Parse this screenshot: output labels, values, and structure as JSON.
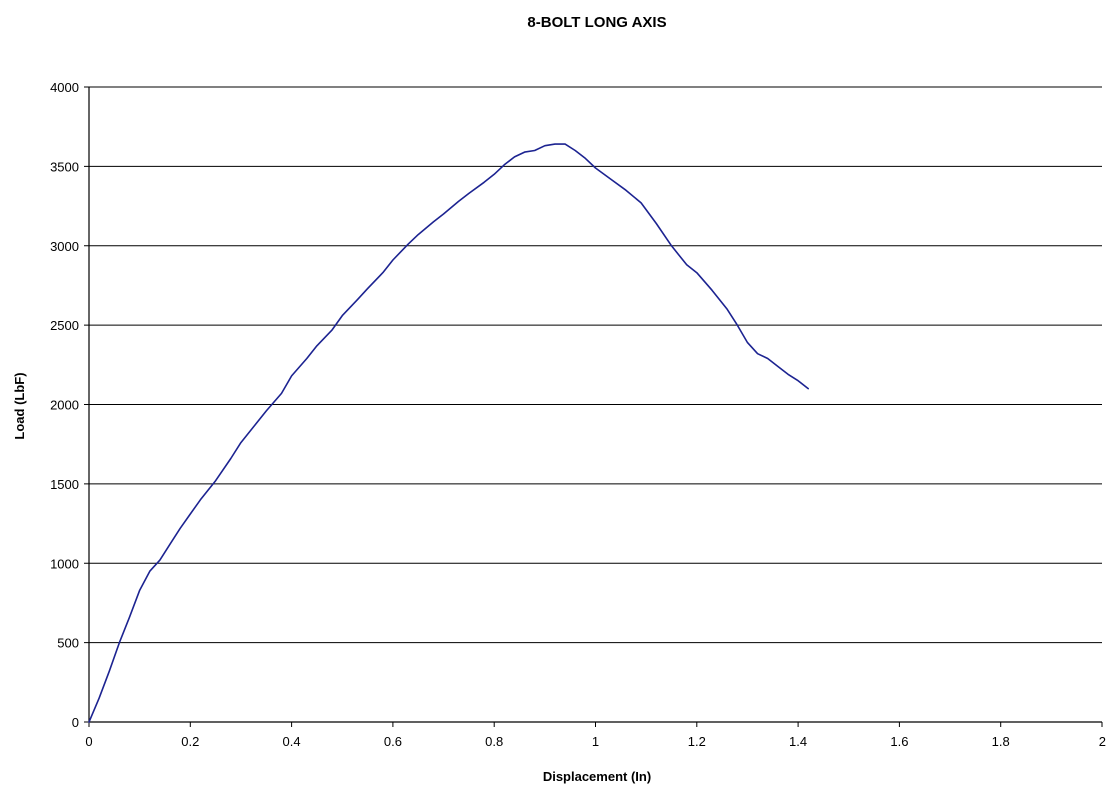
{
  "chart_data": {
    "type": "line",
    "title": "8-BOLT LONG AXIS",
    "xlabel": "Displacement (In)",
    "ylabel": "Load (LbF)",
    "xlim": [
      0,
      2
    ],
    "ylim": [
      0,
      4000
    ],
    "xticks": [
      0,
      0.2,
      0.4,
      0.6,
      0.8,
      1,
      1.2,
      1.4,
      1.6,
      1.8,
      2
    ],
    "xtick_labels": [
      "0",
      "0.2",
      "0.4",
      "0.6",
      "0.8",
      "1",
      "1.2",
      "1.4",
      "1.6",
      "1.8",
      "2"
    ],
    "yticks": [
      0,
      500,
      1000,
      1500,
      2000,
      2500,
      3000,
      3500,
      4000
    ],
    "ytick_labels": [
      "0",
      "500",
      "1000",
      "1500",
      "2000",
      "2500",
      "3000",
      "3500",
      "4000"
    ],
    "grid": "horizontal",
    "legend": "none",
    "series": [
      {
        "color": "#1c2391",
        "x": [
          0,
          0.02,
          0.04,
          0.06,
          0.08,
          0.1,
          0.12,
          0.14,
          0.16,
          0.18,
          0.2,
          0.22,
          0.25,
          0.28,
          0.3,
          0.33,
          0.35,
          0.38,
          0.4,
          0.43,
          0.45,
          0.48,
          0.5,
          0.53,
          0.55,
          0.58,
          0.6,
          0.63,
          0.65,
          0.68,
          0.7,
          0.73,
          0.75,
          0.78,
          0.8,
          0.82,
          0.84,
          0.86,
          0.88,
          0.9,
          0.92,
          0.94,
          0.96,
          0.98,
          1,
          1.03,
          1.06,
          1.09,
          1.12,
          1.15,
          1.18,
          1.2,
          1.23,
          1.26,
          1.28,
          1.3,
          1.32,
          1.34,
          1.36,
          1.38,
          1.4,
          1.42
        ],
        "y": [
          0,
          150,
          320,
          500,
          660,
          830,
          950,
          1020,
          1120,
          1220,
          1310,
          1400,
          1520,
          1660,
          1760,
          1880,
          1960,
          2070,
          2180,
          2290,
          2370,
          2470,
          2560,
          2660,
          2730,
          2830,
          2910,
          3010,
          3070,
          3150,
          3200,
          3280,
          3330,
          3400,
          3450,
          3510,
          3560,
          3590,
          3600,
          3630,
          3640,
          3640,
          3600,
          3550,
          3490,
          3420,
          3350,
          3270,
          3140,
          3000,
          2880,
          2830,
          2720,
          2600,
          2500,
          2390,
          2320,
          2290,
          2240,
          2190,
          2150,
          2100
        ]
      }
    ]
  }
}
